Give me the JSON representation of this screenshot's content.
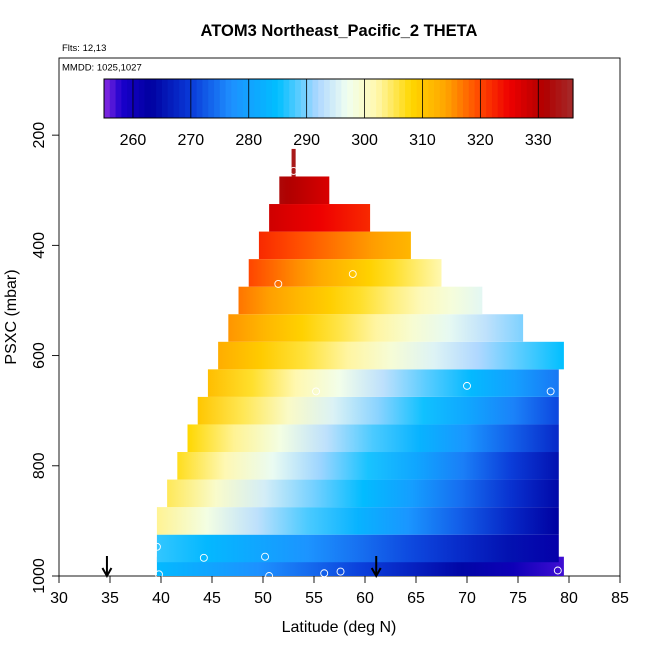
{
  "chart_data": {
    "type": "heatmap",
    "title": "ATOM3 Northeast_Pacific_2 THETA",
    "subtitle_flights": "Flts: 12,13",
    "subtitle_dates": "MMDD: 1025,1027",
    "xlabel": "Latitude (deg N)",
    "ylabel": "PSXC (mbar)",
    "xlim": [
      30,
      85
    ],
    "ylim": [
      1000,
      60
    ],
    "y_reversed": true,
    "xticks": [
      "30",
      "35",
      "40",
      "45",
      "50",
      "55",
      "60",
      "65",
      "70",
      "75",
      "80",
      "85"
    ],
    "yticks": [
      "200",
      "400",
      "600",
      "800",
      "1000"
    ],
    "colorbar": {
      "range": [
        255,
        336
      ],
      "ticks": [
        "260",
        "270",
        "280",
        "290",
        "300",
        "310",
        "320",
        "330"
      ],
      "stops": [
        {
          "v": 255,
          "color": "#8a2be2"
        },
        {
          "v": 258,
          "color": "#1a00cc"
        },
        {
          "v": 263,
          "color": "#0000a0"
        },
        {
          "v": 270,
          "color": "#0a3ad8"
        },
        {
          "v": 277,
          "color": "#1e90ff"
        },
        {
          "v": 285,
          "color": "#00bfff"
        },
        {
          "v": 292,
          "color": "#b0d8ff"
        },
        {
          "v": 297,
          "color": "#f0fff0"
        },
        {
          "v": 302,
          "color": "#fff8b0"
        },
        {
          "v": 308,
          "color": "#ffd700"
        },
        {
          "v": 314,
          "color": "#ffa500"
        },
        {
          "v": 320,
          "color": "#ff4500"
        },
        {
          "v": 325,
          "color": "#ee0000"
        },
        {
          "v": 331,
          "color": "#b00000"
        },
        {
          "v": 336,
          "color": "#a52a2a"
        }
      ]
    },
    "rows": [
      {
        "p": 990,
        "lat0": 39.6,
        "lat1": 79.5,
        "t0": 284,
        "t1": 257
      },
      {
        "p": 950,
        "lat0": 39.6,
        "lat1": 79.0,
        "t0": 287,
        "t1": 262
      },
      {
        "p": 900,
        "lat0": 39.6,
        "lat1": 79.0,
        "t0": 303,
        "t1": 263
      },
      {
        "p": 850,
        "lat0": 40.6,
        "lat1": 79.0,
        "t0": 305,
        "t1": 264
      },
      {
        "p": 800,
        "lat0": 41.6,
        "lat1": 79.0,
        "t0": 307,
        "t1": 265
      },
      {
        "p": 750,
        "lat0": 42.6,
        "lat1": 79.0,
        "t0": 308,
        "t1": 268
      },
      {
        "p": 700,
        "lat0": 43.6,
        "lat1": 79.0,
        "t0": 310,
        "t1": 271
      },
      {
        "p": 650,
        "lat0": 44.6,
        "lat1": 79.0,
        "t0": 311,
        "t1": 275
      },
      {
        "p": 600,
        "lat0": 45.6,
        "lat1": 79.5,
        "t0": 313,
        "t1": 285
      },
      {
        "p": 550,
        "lat0": 46.6,
        "lat1": 75.5,
        "t0": 315,
        "t1": 290
      },
      {
        "p": 500,
        "lat0": 47.6,
        "lat1": 71.5,
        "t0": 317,
        "t1": 296
      },
      {
        "p": 450,
        "lat0": 48.6,
        "lat1": 67.5,
        "t0": 320,
        "t1": 302
      },
      {
        "p": 400,
        "lat0": 49.6,
        "lat1": 64.5,
        "t0": 322,
        "t1": 312
      },
      {
        "p": 350,
        "lat0": 50.6,
        "lat1": 60.5,
        "t0": 328,
        "t1": 322
      },
      {
        "p": 300,
        "lat0": 51.6,
        "lat1": 56.5,
        "t0": 332,
        "t1": 327
      },
      {
        "p": 250,
        "lat0": 52.8,
        "lat1": 53.2,
        "t0": 334,
        "t1": 334
      }
    ],
    "points": [
      {
        "lat": 53.0,
        "p": 265
      },
      {
        "lat": 58.8,
        "p": 452
      },
      {
        "lat": 51.5,
        "p": 470
      },
      {
        "lat": 79.5,
        "p": 562
      },
      {
        "lat": 55.2,
        "p": 665
      },
      {
        "lat": 70.0,
        "p": 655
      },
      {
        "lat": 78.2,
        "p": 665
      },
      {
        "lat": 39.6,
        "p": 947
      },
      {
        "lat": 44.2,
        "p": 967
      },
      {
        "lat": 50.2,
        "p": 965
      },
      {
        "lat": 39.8,
        "p": 997
      },
      {
        "lat": 50.6,
        "p": 1000
      },
      {
        "lat": 56.0,
        "p": 995
      },
      {
        "lat": 57.6,
        "p": 992
      },
      {
        "lat": 78.9,
        "p": 990
      }
    ],
    "arrows_lat": [
      34.7,
      61.1
    ]
  }
}
